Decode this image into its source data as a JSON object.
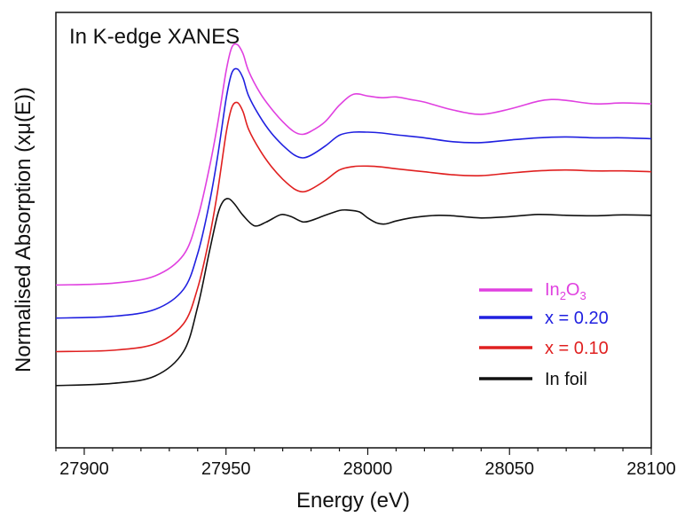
{
  "chart_data": {
    "type": "line",
    "title": "In K-edge XANES",
    "xlabel": "Energy (eV)",
    "ylabel": "Normalised Absorption (xμ(E))",
    "xlim": [
      27890,
      28100
    ],
    "ylim": [
      0,
      1
    ],
    "xticks": [
      27900,
      27950,
      28000,
      28050,
      28100
    ],
    "yticks_shown": false,
    "grid": false,
    "legend_position": "bottom-right",
    "series": [
      {
        "name": "In2O3",
        "legend_label": {
          "base": "In",
          "sub1": "2",
          "mid": "O",
          "sub2": "3"
        },
        "color": "#e040e0",
        "x": [
          27890,
          27910,
          27925,
          27935,
          27940,
          27944,
          27947,
          27950,
          27952,
          27954,
          27956,
          27958,
          27962,
          27966,
          27970,
          27974,
          27977,
          27980,
          27985,
          27990,
          27995,
          28000,
          28005,
          28010,
          28015,
          28020,
          28030,
          28040,
          28050,
          28060,
          28065,
          28070,
          28080,
          28090,
          28100
        ],
        "y": [
          0.374,
          0.378,
          0.395,
          0.443,
          0.528,
          0.639,
          0.742,
          0.864,
          0.919,
          0.926,
          0.905,
          0.865,
          0.815,
          0.779,
          0.749,
          0.726,
          0.72,
          0.727,
          0.749,
          0.787,
          0.812,
          0.808,
          0.804,
          0.806,
          0.8,
          0.794,
          0.776,
          0.766,
          0.778,
          0.796,
          0.8,
          0.798,
          0.79,
          0.792,
          0.79
        ]
      },
      {
        "name": "x = 0.20",
        "color": "#2020e0",
        "x": [
          27890,
          27910,
          27925,
          27935,
          27940,
          27944,
          27947,
          27950,
          27952,
          27954,
          27956,
          27958,
          27962,
          27966,
          27970,
          27974,
          27977,
          27980,
          27985,
          27990,
          27995,
          28000,
          28005,
          28010,
          28020,
          28030,
          28040,
          28050,
          28060,
          28070,
          28080,
          28090,
          28100
        ],
        "y": [
          0.298,
          0.302,
          0.318,
          0.364,
          0.446,
          0.557,
          0.667,
          0.8,
          0.86,
          0.87,
          0.849,
          0.808,
          0.76,
          0.723,
          0.695,
          0.673,
          0.666,
          0.672,
          0.693,
          0.718,
          0.725,
          0.725,
          0.723,
          0.719,
          0.712,
          0.703,
          0.701,
          0.707,
          0.712,
          0.714,
          0.712,
          0.712,
          0.71
        ]
      },
      {
        "name": "x = 0.10",
        "color": "#e02020",
        "x": [
          27890,
          27910,
          27925,
          27935,
          27940,
          27944,
          27947,
          27950,
          27952,
          27954,
          27956,
          27958,
          27962,
          27966,
          27970,
          27974,
          27977,
          27980,
          27985,
          27990,
          27995,
          28000,
          28005,
          28010,
          28020,
          28030,
          28040,
          28050,
          28060,
          28070,
          28080,
          28090,
          28100
        ],
        "y": [
          0.221,
          0.224,
          0.239,
          0.285,
          0.367,
          0.478,
          0.587,
          0.721,
          0.781,
          0.793,
          0.772,
          0.731,
          0.683,
          0.646,
          0.617,
          0.595,
          0.588,
          0.594,
          0.614,
          0.638,
          0.646,
          0.647,
          0.645,
          0.641,
          0.634,
          0.627,
          0.625,
          0.631,
          0.636,
          0.638,
          0.636,
          0.636,
          0.634
        ]
      },
      {
        "name": "In foil",
        "color": "#111111",
        "x": [
          27890,
          27910,
          27925,
          27935,
          27940,
          27944,
          27947,
          27949,
          27951,
          27953,
          27956,
          27960,
          27964,
          27968,
          27970,
          27973,
          27977,
          27980,
          27985,
          27990,
          27993,
          27997,
          28000,
          28003,
          28006,
          28010,
          28015,
          28020,
          28025,
          28030,
          28040,
          28050,
          28060,
          28070,
          28080,
          28090,
          28100
        ],
        "y": [
          0.143,
          0.148,
          0.165,
          0.221,
          0.324,
          0.446,
          0.534,
          0.566,
          0.572,
          0.56,
          0.534,
          0.51,
          0.518,
          0.532,
          0.536,
          0.531,
          0.519,
          0.522,
          0.534,
          0.545,
          0.546,
          0.542,
          0.528,
          0.517,
          0.514,
          0.521,
          0.528,
          0.532,
          0.534,
          0.533,
          0.528,
          0.531,
          0.536,
          0.534,
          0.533,
          0.535,
          0.534
        ]
      }
    ]
  }
}
